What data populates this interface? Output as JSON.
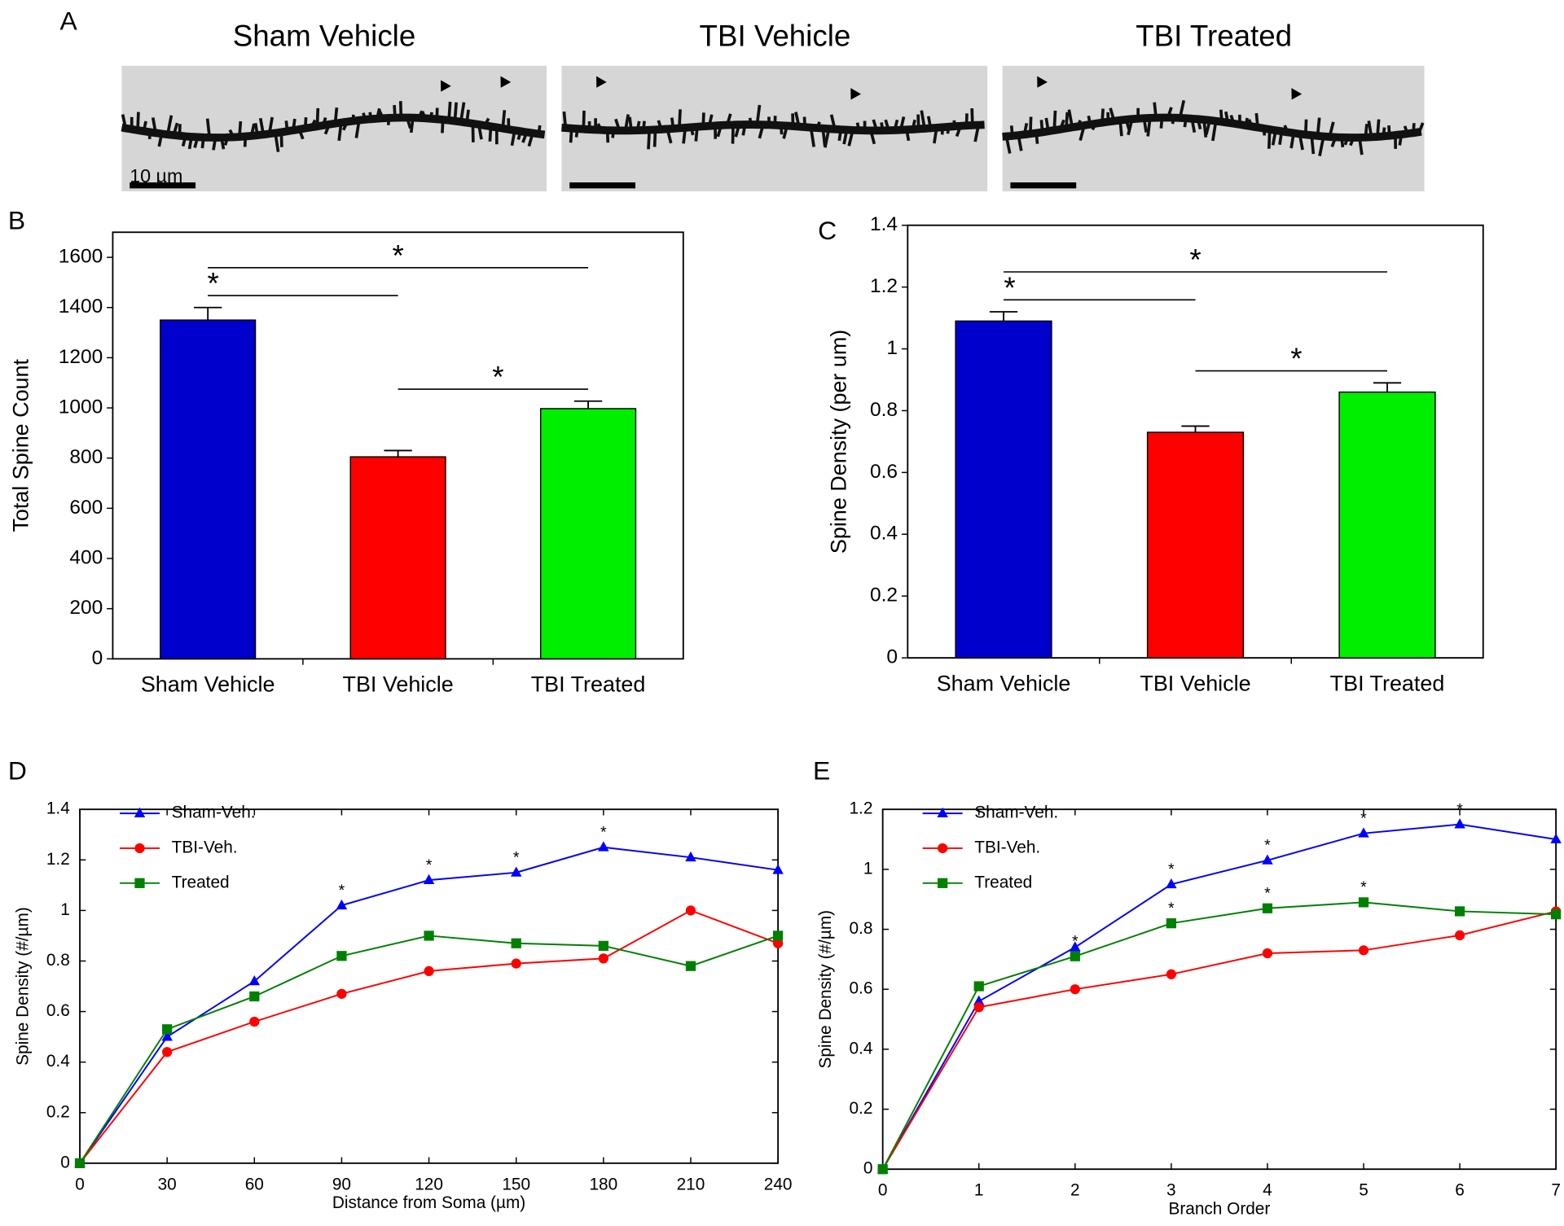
{
  "panel_a": {
    "label": "A",
    "titles": [
      "Sham Vehicle",
      "TBI Vehicle",
      "TBI Treated"
    ],
    "scale_bar_label": "10 µm"
  },
  "chart_data": [
    {
      "type": "bar",
      "label": "B",
      "ylabel": "Total Spine Count",
      "categories": [
        "Sham Vehicle",
        "TBI Vehicle",
        "TBI Treated"
      ],
      "values": [
        1350,
        805,
        997
      ],
      "errors": [
        50,
        25,
        30
      ],
      "colors": [
        "#0000cc",
        "#ff0000",
        "#00ee00"
      ],
      "ylim": [
        0,
        1700
      ],
      "yticks": [
        0,
        200,
        400,
        600,
        800,
        1000,
        1200,
        1400,
        1600
      ],
      "comparisons": [
        {
          "between": [
            0,
            2
          ],
          "label": "*"
        },
        {
          "between": [
            0,
            1
          ],
          "label": "*"
        },
        {
          "between": [
            1,
            2
          ],
          "label": "*"
        }
      ]
    },
    {
      "type": "bar",
      "label": "C",
      "ylabel": "Spine Density (per um)",
      "categories": [
        "Sham Vehicle",
        "TBI Vehicle",
        "TBI Treated"
      ],
      "values": [
        1.09,
        0.73,
        0.86
      ],
      "errors": [
        0.03,
        0.02,
        0.03
      ],
      "colors": [
        "#0000cc",
        "#ff0000",
        "#00ee00"
      ],
      "ylim": [
        0,
        1.4
      ],
      "yticks": [
        0,
        0.2,
        0.4,
        0.6,
        0.8,
        1,
        1.2,
        1.4
      ],
      "comparisons": [
        {
          "between": [
            0,
            2
          ],
          "label": "*"
        },
        {
          "between": [
            0,
            1
          ],
          "label": "*"
        },
        {
          "between": [
            1,
            2
          ],
          "label": "*"
        }
      ]
    },
    {
      "type": "line",
      "label": "D",
      "xlabel": "Distance from Soma (µm)",
      "ylabel": "Spine Density (#/µm)",
      "x": [
        0,
        30,
        60,
        90,
        120,
        150,
        180,
        210,
        240
      ],
      "xlim": [
        0,
        240
      ],
      "xticks": [
        0,
        30,
        60,
        90,
        120,
        150,
        180,
        210,
        240
      ],
      "ylim": [
        0,
        1.4
      ],
      "yticks": [
        0,
        0.2,
        0.4,
        0.6,
        0.8,
        1,
        1.2,
        1.4
      ],
      "legend": "upper left",
      "series": [
        {
          "name": "Sham-Veh.",
          "color": "#0000ff",
          "marker": "triangle",
          "values": [
            0,
            0.5,
            0.72,
            1.02,
            1.12,
            1.15,
            1.25,
            1.21,
            1.16
          ],
          "point_labels": [
            null,
            null,
            null,
            "*",
            "*",
            "*",
            "*",
            null,
            null
          ]
        },
        {
          "name": "TBI-Veh.",
          "color": "#ff0000",
          "marker": "circle",
          "values": [
            0,
            0.44,
            0.56,
            0.67,
            0.76,
            0.79,
            0.81,
            1.0,
            0.87
          ]
        },
        {
          "name": "Treated",
          "color": "#008000",
          "marker": "square",
          "values": [
            0,
            0.53,
            0.66,
            0.82,
            0.9,
            0.87,
            0.86,
            0.78,
            0.9
          ]
        }
      ]
    },
    {
      "type": "line",
      "label": "E",
      "xlabel": "Branch Order",
      "ylabel": "Spine Density (#/µm)",
      "x": [
        0,
        1,
        2,
        3,
        4,
        5,
        6,
        7
      ],
      "xlim": [
        0,
        7
      ],
      "xticks": [
        0,
        1,
        2,
        3,
        4,
        5,
        6,
        7
      ],
      "ylim": [
        0,
        1.2
      ],
      "yticks": [
        0,
        0.2,
        0.4,
        0.6,
        0.8,
        1,
        1.2
      ],
      "legend": "upper left",
      "series": [
        {
          "name": "Sham-Veh.",
          "color": "#0000ff",
          "marker": "triangle",
          "values": [
            0,
            0.56,
            0.74,
            0.95,
            1.03,
            1.12,
            1.15,
            1.1
          ],
          "point_labels": [
            null,
            null,
            null,
            "*",
            "*",
            "*",
            "*",
            null
          ]
        },
        {
          "name": "TBI-Veh.",
          "color": "#ff0000",
          "marker": "circle",
          "values": [
            0,
            0.54,
            0.6,
            0.65,
            0.72,
            0.73,
            0.78,
            0.86
          ]
        },
        {
          "name": "Treated",
          "color": "#008000",
          "marker": "square",
          "values": [
            0,
            0.61,
            0.71,
            0.82,
            0.87,
            0.89,
            0.86,
            0.85
          ],
          "point_labels": [
            null,
            null,
            "*",
            "*",
            "*",
            "*",
            null,
            null
          ]
        }
      ]
    }
  ]
}
